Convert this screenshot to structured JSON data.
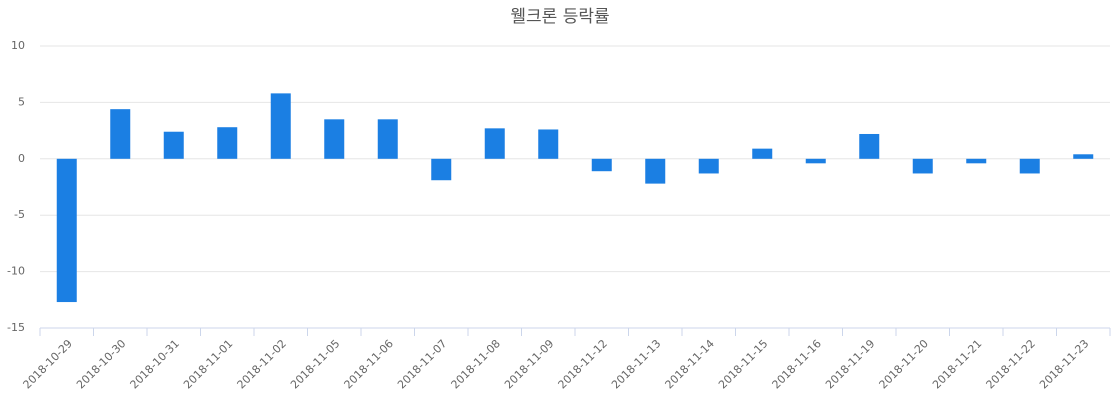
{
  "chart_data": {
    "type": "bar",
    "title": "웰크론 등락률",
    "categories": [
      "2018-10-29",
      "2018-10-30",
      "2018-10-31",
      "2018-11-01",
      "2018-11-02",
      "2018-11-05",
      "2018-11-06",
      "2018-11-07",
      "2018-11-08",
      "2018-11-09",
      "2018-11-12",
      "2018-11-13",
      "2018-11-14",
      "2018-11-15",
      "2018-11-16",
      "2018-11-19",
      "2018-11-20",
      "2018-11-21",
      "2018-11-22",
      "2018-11-23"
    ],
    "values": [
      -12.7,
      4.4,
      2.4,
      2.8,
      5.8,
      3.5,
      3.5,
      -1.9,
      2.7,
      2.6,
      -1.1,
      -2.2,
      -1.3,
      0.9,
      -0.4,
      2.2,
      -1.3,
      -0.4,
      -1.3,
      0.4
    ],
    "color": "#1b7fe3",
    "ylim": [
      -15,
      10
    ],
    "yticks": [
      -15,
      -10,
      -5,
      0,
      5,
      10
    ],
    "grid": true
  }
}
